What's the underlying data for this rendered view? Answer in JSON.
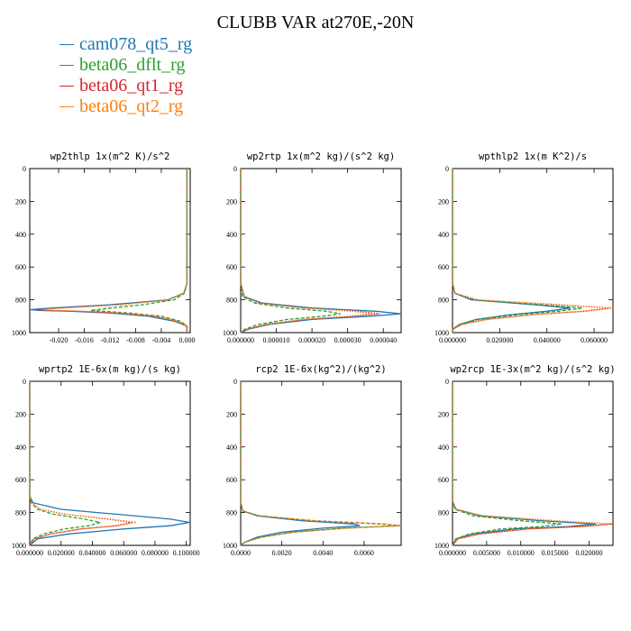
{
  "page": {
    "title": "CLUBB VAR at270E,-20N",
    "legend": [
      {
        "label": "cam078_qt5_rg",
        "color": "#1f77b4"
      },
      {
        "label": "beta06_dflt_rg",
        "color": "#2ca02c"
      },
      {
        "label": "beta06_qt1_rg",
        "color": "#d62728"
      },
      {
        "label": "beta06_qt2_rg",
        "color": "#ff7f0e"
      }
    ]
  },
  "chart_data": [
    {
      "type": "line",
      "title": "wp2thlp  1x(m^2 K)/s^2",
      "xlim": [
        -0.0245,
        0.0005
      ],
      "ylim": [
        1000,
        0
      ],
      "y_inverted": true,
      "xticks": [
        "-0.020",
        "-0.016",
        "-0.012",
        "-0.008",
        "-0.004",
        "0.000"
      ],
      "xtick_values": [
        -0.02,
        -0.016,
        -0.012,
        -0.008,
        -0.004,
        0.0
      ],
      "yticks": [
        "0",
        "200",
        "400",
        "600",
        "800",
        "1000"
      ],
      "ytick_values": [
        0,
        200,
        400,
        600,
        800,
        1000
      ],
      "y": [
        0,
        700,
        760,
        800,
        830,
        850,
        860,
        865,
        870,
        880,
        900,
        930,
        960,
        1000
      ],
      "series": [
        {
          "values": [
            0,
            0,
            -0.0005,
            -0.003,
            -0.012,
            -0.021,
            -0.0245,
            -0.023,
            -0.018,
            -0.012,
            -0.006,
            -0.002,
            0,
            0
          ]
        },
        {
          "values": [
            0,
            0,
            -0.0004,
            -0.002,
            -0.007,
            -0.012,
            -0.014,
            -0.015,
            -0.013,
            -0.009,
            -0.004,
            -0.001,
            0,
            0
          ]
        },
        {
          "values": [
            0,
            0,
            -0.0005,
            -0.003,
            -0.011,
            -0.02,
            -0.0235,
            -0.022,
            -0.017,
            -0.011,
            -0.005,
            -0.0015,
            0,
            0
          ]
        },
        {
          "values": [
            0,
            0,
            -0.0005,
            -0.003,
            -0.01,
            -0.019,
            -0.0225,
            -0.021,
            -0.016,
            -0.01,
            -0.005,
            -0.0015,
            0,
            0
          ]
        }
      ]
    },
    {
      "type": "line",
      "title": "wp2rtp  1x(m^2 kg)/(s^2 kg)",
      "xlim": [
        0,
        4.5e-05
      ],
      "ylim": [
        1000,
        0
      ],
      "y_inverted": true,
      "xticks": [
        "0.000000",
        "0.000010",
        "0.000020",
        "0.000030",
        "0.000040"
      ],
      "xtick_values": [
        0.0,
        1e-05,
        2e-05,
        3e-05,
        4e-05
      ],
      "yticks": [
        "0",
        "200",
        "400",
        "600",
        "800",
        "1000"
      ],
      "ytick_values": [
        0,
        200,
        400,
        600,
        800,
        1000
      ],
      "y": [
        0,
        700,
        780,
        820,
        850,
        870,
        885,
        900,
        920,
        950,
        980,
        1000
      ],
      "series": [
        {
          "values": [
            0,
            0,
            1e-06,
            6e-06,
            2e-05,
            3.8e-05,
            4.5e-05,
            3.6e-05,
            2e-05,
            8e-06,
            2e-06,
            0
          ]
        },
        {
          "values": [
            0,
            0,
            5e-07,
            4e-06,
            1.3e-05,
            2.4e-05,
            2.8e-05,
            2.3e-05,
            1.3e-05,
            5e-06,
            1e-06,
            0
          ]
        },
        {
          "values": [
            0,
            0,
            1e-06,
            5e-06,
            1.8e-05,
            3.3e-05,
            3.9e-05,
            3.2e-05,
            1.8e-05,
            7e-06,
            1.5e-06,
            0
          ]
        },
        {
          "values": [
            0,
            0,
            1e-06,
            5e-06,
            1.7e-05,
            3.1e-05,
            3.7e-05,
            3e-05,
            1.7e-05,
            7e-06,
            1.5e-06,
            0
          ]
        }
      ]
    },
    {
      "type": "line",
      "title": "wpthlp2  1x(m K^2)/s",
      "xlim": [
        0,
        0.068
      ],
      "ylim": [
        1000,
        0
      ],
      "y_inverted": true,
      "xticks": [
        "0.000000",
        "0.020000",
        "0.040000",
        "0.060000"
      ],
      "xtick_values": [
        0.0,
        0.02,
        0.04,
        0.06
      ],
      "yticks": [
        "0",
        "200",
        "400",
        "600",
        "800",
        "1000"
      ],
      "ytick_values": [
        0,
        200,
        400,
        600,
        800,
        1000
      ],
      "y": [
        0,
        700,
        760,
        800,
        830,
        850,
        870,
        890,
        920,
        950,
        980,
        1000
      ],
      "series": [
        {
          "values": [
            0,
            0,
            0.001,
            0.008,
            0.035,
            0.05,
            0.04,
            0.025,
            0.01,
            0.003,
            0,
            0
          ]
        },
        {
          "values": [
            0,
            0,
            0.001,
            0.009,
            0.038,
            0.055,
            0.045,
            0.028,
            0.011,
            0.003,
            0,
            0
          ]
        },
        {
          "values": [
            0,
            0,
            0.001,
            0.01,
            0.045,
            0.067,
            0.055,
            0.034,
            0.014,
            0.004,
            0,
            0
          ]
        },
        {
          "values": [
            0,
            0,
            0.001,
            0.011,
            0.047,
            0.068,
            0.057,
            0.035,
            0.015,
            0.004,
            0,
            0
          ]
        }
      ]
    },
    {
      "type": "line",
      "title": "wprtp2  1E-6x(m kg)/(s kg)",
      "xlim": [
        0,
        0.1025
      ],
      "ylim": [
        1000,
        0
      ],
      "y_inverted": true,
      "xticks": [
        "0.000000",
        "0.020000",
        "0.040000",
        "0.060000",
        "0.080000",
        "0.100000"
      ],
      "xtick_values": [
        0.0,
        0.02,
        0.04,
        0.06,
        0.08,
        0.1
      ],
      "yticks": [
        "0",
        "200",
        "400",
        "600",
        "800",
        "1000"
      ],
      "ytick_values": [
        0,
        200,
        400,
        600,
        800,
        1000
      ],
      "y": [
        0,
        700,
        740,
        780,
        810,
        840,
        860,
        880,
        900,
        930,
        960,
        1000
      ],
      "series": [
        {
          "values": [
            0,
            0,
            0.002,
            0.02,
            0.055,
            0.09,
            0.102,
            0.09,
            0.06,
            0.025,
            0.005,
            0
          ]
        },
        {
          "values": [
            0,
            0,
            0.001,
            0.005,
            0.015,
            0.035,
            0.045,
            0.038,
            0.022,
            0.009,
            0.002,
            0
          ]
        },
        {
          "values": [
            0,
            0,
            0.001,
            0.007,
            0.022,
            0.05,
            0.065,
            0.055,
            0.032,
            0.013,
            0.003,
            0
          ]
        },
        {
          "values": [
            0,
            0,
            0.001,
            0.007,
            0.023,
            0.052,
            0.068,
            0.057,
            0.034,
            0.014,
            0.003,
            0
          ]
        }
      ]
    },
    {
      "type": "line",
      "title": "rcp2  1E-6x(kg^2)/(kg^2)",
      "xlim": [
        0,
        0.0078
      ],
      "ylim": [
        1000,
        0
      ],
      "y_inverted": true,
      "xticks": [
        "0.0000",
        "0.0020",
        "0.0040",
        "0.0060"
      ],
      "xtick_values": [
        0.0,
        0.002,
        0.004,
        0.006
      ],
      "yticks": [
        "0",
        "200",
        "400",
        "600",
        "800",
        "1000"
      ],
      "ytick_values": [
        0,
        200,
        400,
        600,
        800,
        1000
      ],
      "y": [
        0,
        740,
        790,
        820,
        850,
        870,
        880,
        895,
        920,
        950,
        980,
        1000
      ],
      "series": [
        {
          "values": [
            0,
            0,
            0.0001,
            0.0008,
            0.003,
            0.0055,
            0.0058,
            0.004,
            0.002,
            0.0008,
            0.0002,
            0
          ]
        },
        {
          "values": [
            0,
            0,
            0.0001,
            0.0009,
            0.0035,
            0.0068,
            0.0077,
            0.005,
            0.0025,
            0.001,
            0.0002,
            0
          ]
        },
        {
          "values": [
            0,
            0,
            0.0001,
            0.0009,
            0.0036,
            0.007,
            0.0078,
            0.0051,
            0.0025,
            0.001,
            0.0002,
            0
          ]
        },
        {
          "values": [
            0,
            0,
            0.0001,
            0.0009,
            0.0036,
            0.007,
            0.0078,
            0.0052,
            0.0026,
            0.001,
            0.0002,
            0
          ]
        }
      ]
    },
    {
      "type": "line",
      "title": "wp2rcp  1E-3x(m^2 kg)/(s^2 kg)",
      "xlim": [
        0,
        0.0235
      ],
      "ylim": [
        1000,
        0
      ],
      "y_inverted": true,
      "xticks": [
        "0.000000",
        "0.005000",
        "0.010000",
        "0.015000",
        "0.020000"
      ],
      "xtick_values": [
        0.0,
        0.005,
        0.01,
        0.015,
        0.02
      ],
      "yticks": [
        "0",
        "200",
        "400",
        "600",
        "800",
        "1000"
      ],
      "ytick_values": [
        0,
        200,
        400,
        600,
        800,
        1000
      ],
      "y": [
        0,
        730,
        780,
        820,
        850,
        870,
        885,
        900,
        930,
        960,
        1000
      ],
      "series": [
        {
          "values": [
            0,
            0,
            0.0005,
            0.004,
            0.013,
            0.021,
            0.017,
            0.009,
            0.003,
            0.0005,
            0
          ]
        },
        {
          "values": [
            0,
            0,
            0.0004,
            0.003,
            0.01,
            0.016,
            0.013,
            0.007,
            0.0025,
            0.0005,
            0
          ]
        },
        {
          "values": [
            0,
            0,
            0.0005,
            0.0045,
            0.015,
            0.0235,
            0.019,
            0.011,
            0.004,
            0.0008,
            0
          ]
        },
        {
          "values": [
            0,
            0,
            0.0005,
            0.0045,
            0.015,
            0.023,
            0.0195,
            0.011,
            0.004,
            0.0008,
            0
          ]
        }
      ]
    }
  ]
}
